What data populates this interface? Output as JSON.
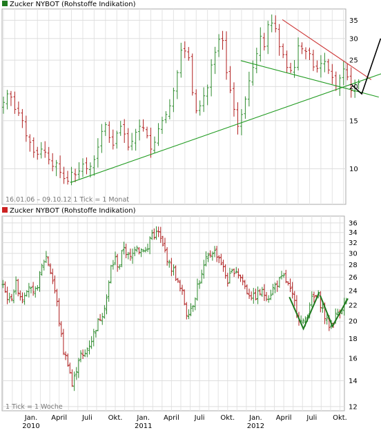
{
  "chart_data": [
    {
      "type": "ohlc",
      "title": "Zucker NYBOT (Rohstoffe Indikation)",
      "legend_color": "#1f7a1f",
      "info_text": "16.01.06 – 09.10.12   1 Tick = 1 Monat",
      "scale": "log",
      "ylim": [
        7.4,
        38.5
      ],
      "yticks": [
        10,
        15,
        20,
        25,
        30,
        35
      ],
      "grid": true,
      "up_color": "#2e8b2e",
      "down_color": "#b01e1e",
      "monthly_closes": [
        17.5,
        18.8,
        18.3,
        16.5,
        16.0,
        15.0,
        13.2,
        12.5,
        11.5,
        11.3,
        11.8,
        11.5,
        10.8,
        10.2,
        10.5,
        9.7,
        9.2,
        9.0,
        9.7,
        9.5,
        9.8,
        10.4,
        10.0,
        10.2,
        10.8,
        12.0,
        13.7,
        14.5,
        13.0,
        12.2,
        13.5,
        14.3,
        13.4,
        12.0,
        12.6,
        13.6,
        14.3,
        14.1,
        13.2,
        11.8,
        12.5,
        14.0,
        15.0,
        15.8,
        17.0,
        19.3,
        22.5,
        27.2,
        27.0,
        25.5,
        19.0,
        16.3,
        17.0,
        18.5,
        19.8,
        24.0,
        26.7,
        29.8,
        29.5,
        22.5,
        19.4,
        16.5,
        14.3,
        15.8,
        18.0,
        21.0,
        23.5,
        26.4,
        30.6,
        28.0,
        33.7,
        34.2,
        32.6,
        28.0,
        26.2,
        23.5,
        22.9,
        23.5,
        28.2,
        27.5,
        26.9,
        26.4,
        23.6,
        23.3,
        24.3,
        24.7,
        23.0,
        21.6,
        20.1,
        21.5,
        23.2,
        21.7,
        19.3,
        20.4,
        20.7
      ],
      "trendlines": [
        {
          "color": "#cc3333",
          "points": [
            [
              74,
              35.2
            ],
            [
              97.5,
              21.2
            ]
          ]
        },
        {
          "color": "#1e9a1e",
          "points": [
            [
              18,
              8.9
            ],
            [
              103,
              23.0
            ]
          ]
        },
        {
          "color": "#1e9a1e",
          "points": [
            [
              63,
              24.9
            ],
            [
              99.5,
              18.3
            ]
          ]
        },
        {
          "color": "#000000",
          "points": [
            [
              92.5,
              20.2
            ],
            [
              95,
              18.8
            ],
            [
              100,
              30.0
            ]
          ]
        }
      ]
    },
    {
      "type": "ohlc",
      "title": "Zucker NYBOT (Rohstoffe Indikation)",
      "legend_color": "#cc2222",
      "info_text": "1 Tick = 1 Woche",
      "scale": "log",
      "ylim": [
        11.7,
        37.5
      ],
      "yticks": [
        12,
        14,
        16,
        18,
        20,
        22,
        24,
        26,
        28,
        30,
        32,
        34,
        36
      ],
      "grid": true,
      "up_color": "#2e8b2e",
      "down_color": "#b01e1e",
      "xticks": [
        {
          "month": 0,
          "label": "Jan.",
          "year": "2010"
        },
        {
          "month": 3,
          "label": "April"
        },
        {
          "month": 6,
          "label": "Juli"
        },
        {
          "month": 9,
          "label": "Okt."
        },
        {
          "month": 12,
          "label": "Jan.",
          "year": "2011"
        },
        {
          "month": 15,
          "label": "April"
        },
        {
          "month": 18,
          "label": "Juli"
        },
        {
          "month": 21,
          "label": "Okt."
        },
        {
          "month": 24,
          "label": "Jan.",
          "year": "2012"
        },
        {
          "month": 27,
          "label": "April"
        },
        {
          "month": 30,
          "label": "Juli"
        },
        {
          "month": 33,
          "label": "Okt."
        }
      ],
      "weekly_anchors": [
        [
          -3.0,
          24.5
        ],
        [
          -2.3,
          22.5
        ],
        [
          -1.6,
          25.0
        ],
        [
          -1.0,
          22.8
        ],
        [
          -0.3,
          25.0
        ],
        [
          0.3,
          23.0
        ],
        [
          0.9,
          26.0
        ],
        [
          1.3,
          28.5
        ],
        [
          1.6,
          29.5
        ],
        [
          1.9,
          28.0
        ],
        [
          2.4,
          25.0
        ],
        [
          2.8,
          22.0
        ],
        [
          3.1,
          19.0
        ],
        [
          3.5,
          16.5
        ],
        [
          4.0,
          15.5
        ],
        [
          4.4,
          13.5
        ],
        [
          4.7,
          14.5
        ],
        [
          5.2,
          16.5
        ],
        [
          5.6,
          16.0
        ],
        [
          6.0,
          17.0
        ],
        [
          6.5,
          18.0
        ],
        [
          7.0,
          19.5
        ],
        [
          7.6,
          21.0
        ],
        [
          8.2,
          23.5
        ],
        [
          8.5,
          27.5
        ],
        [
          9.0,
          29.0
        ],
        [
          9.4,
          27.5
        ],
        [
          9.9,
          31.5
        ],
        [
          10.3,
          29.5
        ],
        [
          10.7,
          29.0
        ],
        [
          11.2,
          32.0
        ],
        [
          11.6,
          30.5
        ],
        [
          12.0,
          31.0
        ],
        [
          12.4,
          30.0
        ],
        [
          12.8,
          34.0
        ],
        [
          13.2,
          33.5
        ],
        [
          13.6,
          34.0
        ],
        [
          14.0,
          31.5
        ],
        [
          14.4,
          30.0
        ],
        [
          14.8,
          27.8
        ],
        [
          15.3,
          27.0
        ],
        [
          15.8,
          24.5
        ],
        [
          16.2,
          23.5
        ],
        [
          16.6,
          21.0
        ],
        [
          17.0,
          21.5
        ],
        [
          17.4,
          22.5
        ],
        [
          17.8,
          25.0
        ],
        [
          18.2,
          26.0
        ],
        [
          18.6,
          28.5
        ],
        [
          19.0,
          29.5
        ],
        [
          19.4,
          30.5
        ],
        [
          19.8,
          30.0
        ],
        [
          20.2,
          29.0
        ],
        [
          20.6,
          27.0
        ],
        [
          21.0,
          25.5
        ],
        [
          21.4,
          26.5
        ],
        [
          21.8,
          27.5
        ],
        [
          22.2,
          26.5
        ],
        [
          22.6,
          25.5
        ],
        [
          23.0,
          24.0
        ],
        [
          23.4,
          23.5
        ],
        [
          23.8,
          23.0
        ],
        [
          24.2,
          23.5
        ],
        [
          24.6,
          23.8
        ],
        [
          25.0,
          23.5
        ],
        [
          25.4,
          23.2
        ],
        [
          25.8,
          24.2
        ],
        [
          26.2,
          25.0
        ],
        [
          26.6,
          25.5
        ],
        [
          27.0,
          26.0
        ],
        [
          27.4,
          25.0
        ],
        [
          27.8,
          23.5
        ],
        [
          28.2,
          22.2
        ],
        [
          28.6,
          20.5
        ],
        [
          29.0,
          19.5
        ],
        [
          29.4,
          20.5
        ],
        [
          29.8,
          22.5
        ],
        [
          30.2,
          23.0
        ],
        [
          30.6,
          23.2
        ],
        [
          31.0,
          22.0
        ],
        [
          31.4,
          20.5
        ],
        [
          31.8,
          19.5
        ],
        [
          32.2,
          19.8
        ],
        [
          32.6,
          20.8
        ],
        [
          33.0,
          21.5
        ],
        [
          33.4,
          22.0
        ],
        [
          33.8,
          23.0
        ]
      ],
      "trendlines": [
        {
          "color": "#1e7a1e",
          "points": [
            [
              27.6,
              23.1
            ],
            [
              29.1,
              19.1
            ],
            [
              30.8,
              23.8
            ]
          ]
        },
        {
          "color": "#1e7a1e",
          "points": [
            [
              30.9,
              23.3
            ],
            [
              32.2,
              19.4
            ],
            [
              33.85,
              22.9
            ]
          ]
        }
      ]
    }
  ]
}
